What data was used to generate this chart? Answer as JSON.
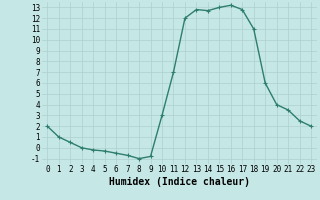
{
  "x": [
    0,
    1,
    2,
    3,
    4,
    5,
    6,
    7,
    8,
    9,
    10,
    11,
    12,
    13,
    14,
    15,
    16,
    17,
    18,
    19,
    20,
    21,
    22,
    23
  ],
  "y": [
    2,
    1,
    0.5,
    0,
    -0.2,
    -0.3,
    -0.5,
    -0.7,
    -1,
    -0.8,
    3,
    7,
    12,
    12.8,
    12.7,
    13,
    13.2,
    12.8,
    11,
    6,
    4,
    3.5,
    2.5,
    2
  ],
  "xlabel": "Humidex (Indice chaleur)",
  "line_color": "#2e7d6e",
  "marker": "+",
  "bg_color": "#c5e8e6",
  "grid_color": "#aed0ce",
  "xlim": [
    -0.5,
    23.5
  ],
  "ylim": [
    -1.5,
    13.5
  ],
  "yticks": [
    -1,
    0,
    1,
    2,
    3,
    4,
    5,
    6,
    7,
    8,
    9,
    10,
    11,
    12,
    13
  ],
  "xticks": [
    0,
    1,
    2,
    3,
    4,
    5,
    6,
    7,
    8,
    9,
    10,
    11,
    12,
    13,
    14,
    15,
    16,
    17,
    18,
    19,
    20,
    21,
    22,
    23
  ],
  "xlabel_fontsize": 7,
  "tick_fontsize": 5.5,
  "marker_size": 3,
  "line_width": 1.0
}
